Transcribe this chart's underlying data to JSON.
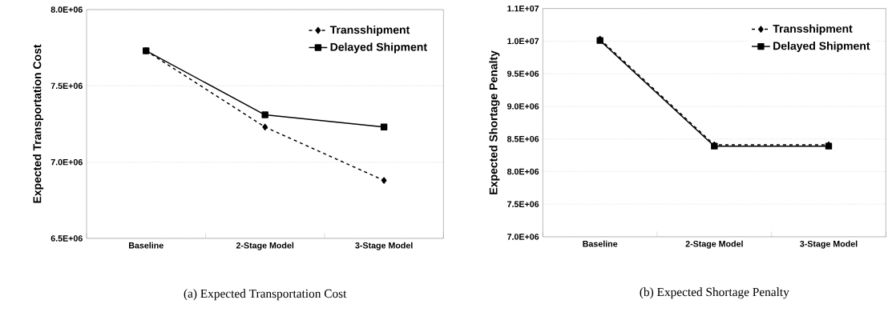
{
  "chart_data": [
    {
      "type": "line",
      "ylabel": "Expected Transportation Cost",
      "annotations": [
        "(a) Expected Transportation Cost"
      ],
      "categories": [
        "Baseline",
        "2-Stage Model",
        "3-Stage Model"
      ],
      "series": [
        {
          "name": "Transshipment",
          "color": "#000000",
          "marker": "diamond",
          "line_style": "dashed",
          "values": [
            7730000,
            7230000,
            6880000
          ]
        },
        {
          "name": "Delayed Shipment",
          "color": "#000000",
          "marker": "square",
          "line_style": "solid",
          "values": [
            7730000,
            7310000,
            7230000
          ]
        }
      ],
      "ylim": [
        6500000,
        8000000
      ],
      "yticks": [
        {
          "value": 6500000,
          "label": "6.5E+06"
        },
        {
          "value": 7000000,
          "label": "7.0E+06"
        },
        {
          "value": 7500000,
          "label": "7.5E+06"
        },
        {
          "value": 8000000,
          "label": "8.0E+06"
        }
      ],
      "grid": "y",
      "legend": "top right"
    },
    {
      "type": "line",
      "ylabel": "Expected Shortage Penalty",
      "annotations": [
        "(b) Expected Shortage Penalty"
      ],
      "categories": [
        "Baseline",
        "2-Stage Model",
        "3-Stage Model"
      ],
      "series": [
        {
          "name": "Transshipment",
          "color": "#000000",
          "marker": "diamond",
          "line_style": "dashed",
          "values": [
            10030000,
            8410000,
            8410000
          ]
        },
        {
          "name": "Delayed Shipment",
          "color": "#000000",
          "marker": "square",
          "line_style": "solid",
          "values": [
            10010000,
            8390000,
            8390000
          ]
        }
      ],
      "ylim": [
        7000000,
        10500000
      ],
      "yticks": [
        {
          "value": 7000000,
          "label": "7.0E+06"
        },
        {
          "value": 7500000,
          "label": "7.5E+06"
        },
        {
          "value": 8000000,
          "label": "8.0E+06"
        },
        {
          "value": 8500000,
          "label": "8.5E+06"
        },
        {
          "value": 9000000,
          "label": "9.0E+06"
        },
        {
          "value": 9500000,
          "label": "9.5E+06"
        },
        {
          "value": 10000000,
          "label": "1.0E+07"
        },
        {
          "value": 10500000,
          "label": "1.1E+07"
        }
      ],
      "grid": "y",
      "legend": "top right"
    }
  ]
}
